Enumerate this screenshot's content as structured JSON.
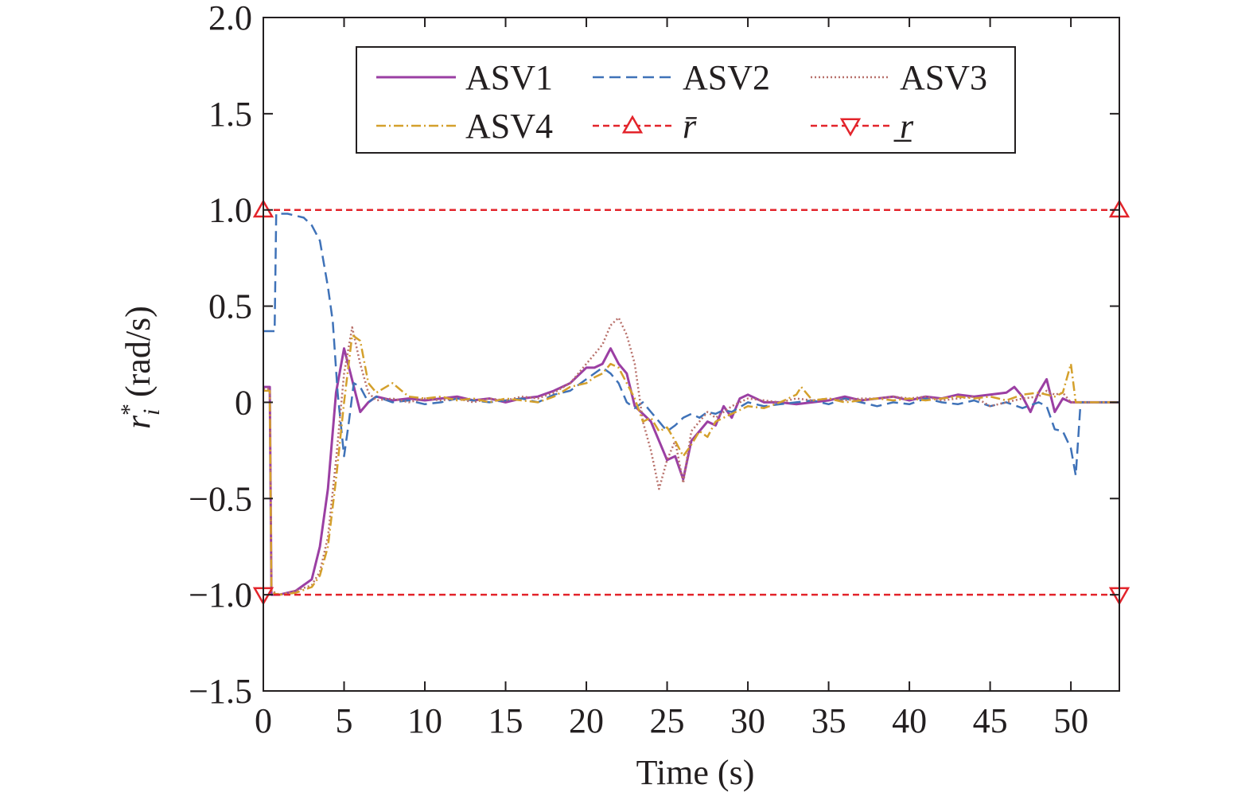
{
  "chart_data": {
    "type": "line",
    "xlabel": "Time (s)",
    "ylabel": {
      "base": "r",
      "superscript": "*",
      "subscript": "i",
      "unit": "(rad/s)"
    },
    "xlim": [
      0,
      53
    ],
    "ylim": [
      -1.5,
      2.0
    ],
    "xticks": [
      0,
      5,
      10,
      15,
      20,
      25,
      30,
      35,
      40,
      45,
      50
    ],
    "yticks": [
      -1.5,
      -1.0,
      -0.5,
      0,
      0.5,
      1.0,
      1.5,
      2.0
    ],
    "ytick_labels": [
      "−1.5",
      "−1.0",
      "−0.5",
      "0",
      "0.5",
      "1.0",
      "1.5",
      "2.0"
    ],
    "grid": false,
    "legend_position": "top",
    "series": [
      {
        "name": "ASV1",
        "color": "#9b3fa3",
        "dash": "solid",
        "points": [
          [
            0,
            0.08
          ],
          [
            0.4,
            0.08
          ],
          [
            0.5,
            -1.0
          ],
          [
            1,
            -1.0
          ],
          [
            2,
            -0.98
          ],
          [
            3,
            -0.92
          ],
          [
            3.5,
            -0.75
          ],
          [
            4,
            -0.45
          ],
          [
            4.5,
            0.05
          ],
          [
            5,
            0.28
          ],
          [
            5.4,
            0.15
          ],
          [
            6,
            -0.05
          ],
          [
            6.5,
            0.0
          ],
          [
            7,
            0.03
          ],
          [
            8,
            0.01
          ],
          [
            9,
            0.02
          ],
          [
            10,
            0.01
          ],
          [
            11,
            0.02
          ],
          [
            12,
            0.03
          ],
          [
            13,
            0.01
          ],
          [
            14,
            0.02
          ],
          [
            15,
            0.0
          ],
          [
            16,
            0.02
          ],
          [
            17,
            0.03
          ],
          [
            18,
            0.06
          ],
          [
            19,
            0.1
          ],
          [
            20,
            0.18
          ],
          [
            20.5,
            0.18
          ],
          [
            21,
            0.2
          ],
          [
            21.5,
            0.28
          ],
          [
            22,
            0.2
          ],
          [
            22.5,
            0.15
          ],
          [
            23,
            -0.02
          ],
          [
            23.5,
            -0.06
          ],
          [
            24,
            -0.1
          ],
          [
            24.5,
            -0.2
          ],
          [
            25,
            -0.3
          ],
          [
            25.5,
            -0.28
          ],
          [
            26,
            -0.4
          ],
          [
            26.5,
            -0.2
          ],
          [
            27,
            -0.15
          ],
          [
            27.5,
            -0.1
          ],
          [
            28,
            -0.12
          ],
          [
            28.5,
            -0.02
          ],
          [
            29,
            -0.08
          ],
          [
            29.5,
            0.02
          ],
          [
            30,
            0.04
          ],
          [
            31,
            0.0
          ],
          [
            32,
            0.0
          ],
          [
            33,
            -0.01
          ],
          [
            34,
            0.0
          ],
          [
            35,
            0.01
          ],
          [
            36,
            0.03
          ],
          [
            37,
            0.01
          ],
          [
            38,
            0.02
          ],
          [
            39,
            0.03
          ],
          [
            40,
            0.01
          ],
          [
            41,
            0.03
          ],
          [
            42,
            0.02
          ],
          [
            43,
            0.04
          ],
          [
            44,
            0.03
          ],
          [
            45,
            0.04
          ],
          [
            46,
            0.05
          ],
          [
            46.5,
            0.08
          ],
          [
            47,
            0.03
          ],
          [
            47.5,
            -0.05
          ],
          [
            48,
            0.05
          ],
          [
            48.5,
            0.12
          ],
          [
            49,
            -0.05
          ],
          [
            49.5,
            0.02
          ],
          [
            50,
            0.0
          ],
          [
            53,
            0.0
          ]
        ]
      },
      {
        "name": "ASV2",
        "color": "#3f72b8",
        "dash": "14,7",
        "points": [
          [
            0,
            0.37
          ],
          [
            0.7,
            0.37
          ],
          [
            0.8,
            0.98
          ],
          [
            1.5,
            0.98
          ],
          [
            2,
            0.97
          ],
          [
            2.5,
            0.96
          ],
          [
            3,
            0.92
          ],
          [
            3.5,
            0.84
          ],
          [
            4,
            0.6
          ],
          [
            4.3,
            0.42
          ],
          [
            4.6,
            0.05
          ],
          [
            5,
            -0.28
          ],
          [
            5.3,
            -0.1
          ],
          [
            5.6,
            0.1
          ],
          [
            6,
            0.08
          ],
          [
            6.5,
            0.0
          ],
          [
            7,
            0.03
          ],
          [
            8,
            0.0
          ],
          [
            9,
            0.01
          ],
          [
            10,
            -0.01
          ],
          [
            11,
            0.0
          ],
          [
            12,
            0.02
          ],
          [
            13,
            0.01
          ],
          [
            14,
            0.0
          ],
          [
            15,
            0.01
          ],
          [
            16,
            0.02
          ],
          [
            17,
            0.0
          ],
          [
            18,
            0.04
          ],
          [
            19,
            0.06
          ],
          [
            20,
            0.12
          ],
          [
            21,
            0.18
          ],
          [
            21.5,
            0.15
          ],
          [
            22,
            0.1
          ],
          [
            22.5,
            0.0
          ],
          [
            23,
            -0.03
          ],
          [
            23.5,
            0.0
          ],
          [
            24,
            -0.05
          ],
          [
            24.5,
            -0.1
          ],
          [
            25,
            -0.15
          ],
          [
            25.5,
            -0.12
          ],
          [
            26,
            -0.08
          ],
          [
            26.5,
            -0.06
          ],
          [
            27,
            -0.08
          ],
          [
            27.5,
            -0.05
          ],
          [
            28,
            -0.06
          ],
          [
            28.5,
            -0.04
          ],
          [
            29,
            -0.05
          ],
          [
            30,
            0.0
          ],
          [
            31,
            -0.02
          ],
          [
            32,
            -0.01
          ],
          [
            33,
            0.0
          ],
          [
            34,
            0.01
          ],
          [
            35,
            -0.01
          ],
          [
            36,
            0.02
          ],
          [
            37,
            0.0
          ],
          [
            38,
            -0.02
          ],
          [
            39,
            0.0
          ],
          [
            40,
            -0.01
          ],
          [
            41,
            0.02
          ],
          [
            42,
            0.0
          ],
          [
            43,
            -0.01
          ],
          [
            44,
            0.01
          ],
          [
            45,
            -0.02
          ],
          [
            46,
            0.0
          ],
          [
            47,
            -0.03
          ],
          [
            48,
            0.0
          ],
          [
            48.5,
            -0.02
          ],
          [
            49,
            -0.14
          ],
          [
            49.5,
            -0.15
          ],
          [
            50,
            -0.24
          ],
          [
            50.3,
            -0.38
          ],
          [
            50.6,
            0.0
          ],
          [
            53,
            0.0
          ]
        ]
      },
      {
        "name": "ASV3",
        "color": "#b8706a",
        "dash": "2,3",
        "points": [
          [
            0,
            0.07
          ],
          [
            0.4,
            0.07
          ],
          [
            0.5,
            -0.98
          ],
          [
            1,
            -1.0
          ],
          [
            2,
            -0.98
          ],
          [
            3,
            -0.95
          ],
          [
            3.5,
            -0.88
          ],
          [
            4,
            -0.7
          ],
          [
            4.5,
            -0.3
          ],
          [
            5,
            0.15
          ],
          [
            5.5,
            0.39
          ],
          [
            6,
            0.2
          ],
          [
            6.5,
            0.05
          ],
          [
            7,
            0.01
          ],
          [
            8,
            0.02
          ],
          [
            9,
            0.0
          ],
          [
            10,
            0.02
          ],
          [
            11,
            0.01
          ],
          [
            12,
            0.02
          ],
          [
            13,
            0.0
          ],
          [
            14,
            0.02
          ],
          [
            15,
            0.01
          ],
          [
            16,
            0.03
          ],
          [
            17,
            0.02
          ],
          [
            18,
            0.05
          ],
          [
            19,
            0.1
          ],
          [
            20,
            0.2
          ],
          [
            20.5,
            0.25
          ],
          [
            21,
            0.3
          ],
          [
            21.5,
            0.4
          ],
          [
            22,
            0.44
          ],
          [
            22.5,
            0.35
          ],
          [
            23,
            0.2
          ],
          [
            23.5,
            -0.1
          ],
          [
            24,
            -0.25
          ],
          [
            24.5,
            -0.45
          ],
          [
            25,
            -0.3
          ],
          [
            25.5,
            -0.2
          ],
          [
            26,
            -0.42
          ],
          [
            26.5,
            -0.15
          ],
          [
            27,
            -0.1
          ],
          [
            27.5,
            -0.05
          ],
          [
            28,
            -0.08
          ],
          [
            29,
            -0.02
          ],
          [
            30,
            0.02
          ],
          [
            31,
            0.01
          ],
          [
            32,
            0.0
          ],
          [
            33,
            0.02
          ],
          [
            34,
            0.01
          ],
          [
            35,
            0.02
          ],
          [
            36,
            0.01
          ],
          [
            37,
            0.02
          ],
          [
            38,
            0.02
          ],
          [
            39,
            0.03
          ],
          [
            40,
            0.02
          ],
          [
            41,
            0.03
          ],
          [
            42,
            0.01
          ],
          [
            43,
            0.02
          ],
          [
            44,
            0.03
          ],
          [
            45,
            -0.02
          ],
          [
            46,
            0.0
          ],
          [
            47,
            0.02
          ],
          [
            48,
            0.03
          ],
          [
            48.5,
            0.06
          ],
          [
            49,
            0.04
          ],
          [
            49.5,
            0.05
          ],
          [
            50,
            0.0
          ],
          [
            53,
            0.0
          ]
        ]
      },
      {
        "name": "ASV4",
        "color": "#d4a02c",
        "dash": "12,4,2,4",
        "points": [
          [
            0,
            0.06
          ],
          [
            0.4,
            0.06
          ],
          [
            0.5,
            -0.99
          ],
          [
            1,
            -1.0
          ],
          [
            2,
            -0.99
          ],
          [
            3,
            -0.96
          ],
          [
            3.5,
            -0.9
          ],
          [
            4,
            -0.75
          ],
          [
            4.5,
            -0.4
          ],
          [
            5,
            0.0
          ],
          [
            5.5,
            0.35
          ],
          [
            6,
            0.32
          ],
          [
            6.5,
            0.1
          ],
          [
            7,
            0.05
          ],
          [
            8,
            0.1
          ],
          [
            9,
            0.03
          ],
          [
            10,
            0.02
          ],
          [
            11,
            0.03
          ],
          [
            12,
            0.01
          ],
          [
            13,
            0.02
          ],
          [
            14,
            0.0
          ],
          [
            15,
            0.02
          ],
          [
            16,
            0.01
          ],
          [
            17,
            0.0
          ],
          [
            18,
            0.03
          ],
          [
            19,
            0.08
          ],
          [
            20,
            0.1
          ],
          [
            20.5,
            0.13
          ],
          [
            21,
            0.15
          ],
          [
            21.5,
            0.2
          ],
          [
            22,
            0.18
          ],
          [
            22.5,
            0.1
          ],
          [
            23,
            0.02
          ],
          [
            23.5,
            -0.1
          ],
          [
            24,
            -0.08
          ],
          [
            24.5,
            -0.15
          ],
          [
            25,
            -0.13
          ],
          [
            25.5,
            -0.2
          ],
          [
            26,
            -0.28
          ],
          [
            26.5,
            -0.22
          ],
          [
            27,
            -0.15
          ],
          [
            27.5,
            -0.18
          ],
          [
            28,
            -0.1
          ],
          [
            29,
            -0.06
          ],
          [
            30,
            -0.02
          ],
          [
            31,
            -0.03
          ],
          [
            32,
            0.0
          ],
          [
            33,
            0.04
          ],
          [
            33.3,
            0.08
          ],
          [
            34,
            0.01
          ],
          [
            35,
            0.02
          ],
          [
            36,
            0.0
          ],
          [
            37,
            0.01
          ],
          [
            38,
            0.02
          ],
          [
            39,
            0.01
          ],
          [
            40,
            0.02
          ],
          [
            41,
            0.01
          ],
          [
            42,
            0.02
          ],
          [
            43,
            0.03
          ],
          [
            44,
            0.02
          ],
          [
            45,
            0.03
          ],
          [
            46,
            0.01
          ],
          [
            47,
            0.04
          ],
          [
            48,
            0.05
          ],
          [
            49,
            0.03
          ],
          [
            49.5,
            0.05
          ],
          [
            50,
            0.2
          ],
          [
            50.3,
            0.0
          ],
          [
            53,
            0.0
          ]
        ]
      },
      {
        "name": "r̄",
        "color": "#e3242b",
        "dash": "8,5",
        "marker": "triangle-up",
        "points": [
          [
            0,
            1.0
          ],
          [
            53,
            1.0
          ]
        ]
      },
      {
        "name": "r̲",
        "color": "#e3242b",
        "dash": "8,5",
        "marker": "triangle-down",
        "points": [
          [
            0,
            -1.0
          ],
          [
            53,
            -1.0
          ]
        ]
      }
    ]
  }
}
